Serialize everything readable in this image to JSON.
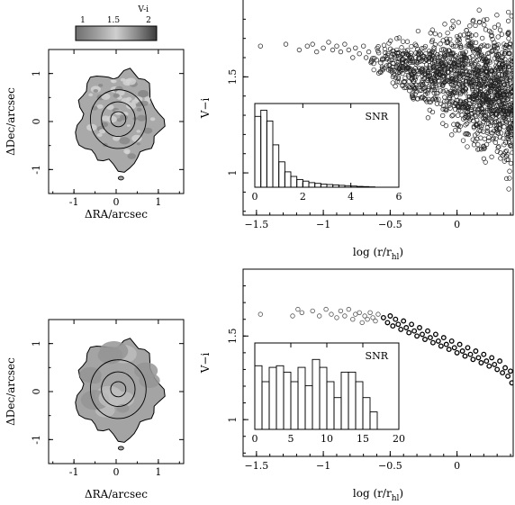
{
  "colorbar": {
    "label": "V-i",
    "tick_labels": [
      "1",
      "1.5",
      "2"
    ],
    "gradient": [
      "#6f6f6f",
      "#9c9c9c",
      "#cfcfcf",
      "#8a8a8a",
      "#3c3c3c"
    ]
  },
  "chart_data": [
    {
      "id": "map-top",
      "type": "heatmap",
      "xlabel": "ΔRA/arcsec",
      "ylabel": "ΔDec/arcsec",
      "xlim": [
        -1.6,
        1.6
      ],
      "ylim": [
        -1.5,
        1.5
      ],
      "xticks": [
        -1,
        0,
        1
      ],
      "yticks": [
        -1,
        0,
        1
      ],
      "fill_color": "#a9a9a9",
      "contour_radii_arcsec": [
        0.18,
        0.38,
        0.6
      ]
    },
    {
      "id": "map-bottom",
      "type": "heatmap",
      "xlabel": "ΔRA/arcsec",
      "ylabel": "ΔDec/arcsec",
      "xlim": [
        -1.6,
        1.6
      ],
      "ylim": [
        -1.5,
        1.5
      ],
      "xticks": [
        -1,
        0,
        1
      ],
      "yticks": [
        -1,
        0,
        1
      ],
      "fill_color": "#a4a4a4",
      "contour_radii_arcsec": [
        0.18,
        0.38,
        0.6
      ]
    },
    {
      "id": "scatter-top",
      "type": "scatter",
      "xlabel": "log (r/r",
      "xlabel_sub": "hl",
      "xlabel_close": ")",
      "ylabel": "V−i",
      "xlim": [
        -1.6,
        0.42
      ],
      "ylim": [
        0.78,
        1.9
      ],
      "xticks": [
        -1.5,
        -1,
        -0.5,
        0
      ],
      "yticks": [
        1,
        1.5
      ],
      "points_sparse": [
        [
          -1.47,
          1.66
        ],
        [
          -1.28,
          1.67
        ],
        [
          -1.18,
          1.64
        ],
        [
          -1.12,
          1.66
        ],
        [
          -1.08,
          1.67
        ],
        [
          -1.05,
          1.63
        ],
        [
          -1.0,
          1.65
        ],
        [
          -0.96,
          1.68
        ],
        [
          -0.93,
          1.64
        ],
        [
          -0.9,
          1.66
        ],
        [
          -0.87,
          1.63
        ],
        [
          -0.84,
          1.67
        ],
        [
          -0.81,
          1.64
        ],
        [
          -0.78,
          1.6
        ],
        [
          -0.76,
          1.65
        ],
        [
          -0.73,
          1.62
        ],
        [
          -0.7,
          1.66
        ],
        [
          -0.68,
          1.6
        ],
        [
          -0.66,
          1.63
        ],
        [
          -0.64,
          1.58
        ]
      ],
      "dense_cloud": {
        "x_range": [
          -0.65,
          0.42
        ],
        "y_center_at_start": 1.6,
        "y_center_at_end": 1.4,
        "spread_at_start": 0.08,
        "spread_at_end": 0.55,
        "count": 1400
      },
      "inset": {
        "type": "bar",
        "label": "SNR",
        "xlim": [
          0,
          6
        ],
        "xticks": [
          0,
          2,
          4,
          6
        ],
        "bin_width": 0.25,
        "values": [
          0.92,
          1.0,
          0.86,
          0.55,
          0.33,
          0.2,
          0.14,
          0.1,
          0.08,
          0.06,
          0.05,
          0.04,
          0.035,
          0.03,
          0.025,
          0.02,
          0.015,
          0.01,
          0.008,
          0.005
        ]
      }
    },
    {
      "id": "scatter-bottom",
      "type": "scatter",
      "xlabel": "log (r/r",
      "xlabel_sub": "hl",
      "xlabel_close": ")",
      "ylabel": "V−i",
      "xlim": [
        -1.6,
        0.42
      ],
      "ylim": [
        0.78,
        1.9
      ],
      "xticks": [
        -1.5,
        -1,
        -0.5,
        0
      ],
      "yticks": [
        1,
        1.5
      ],
      "points_light": [
        [
          -1.47,
          1.63
        ],
        [
          -1.23,
          1.62
        ],
        [
          -1.19,
          1.66
        ],
        [
          -1.16,
          1.64
        ],
        [
          -1.08,
          1.65
        ],
        [
          -1.03,
          1.62
        ],
        [
          -0.98,
          1.66
        ],
        [
          -0.94,
          1.63
        ],
        [
          -0.9,
          1.61
        ],
        [
          -0.87,
          1.65
        ],
        [
          -0.84,
          1.62
        ],
        [
          -0.81,
          1.66
        ],
        [
          -0.78,
          1.6
        ],
        [
          -0.76,
          1.63
        ],
        [
          -0.73,
          1.64
        ],
        [
          -0.71,
          1.58
        ],
        [
          -0.69,
          1.62
        ],
        [
          -0.67,
          1.6
        ],
        [
          -0.65,
          1.64
        ],
        [
          -0.63,
          1.61
        ],
        [
          -0.61,
          1.59
        ],
        [
          -0.59,
          1.63
        ]
      ],
      "points_dark": [
        [
          -0.55,
          1.61
        ],
        [
          -0.52,
          1.58
        ],
        [
          -0.5,
          1.62
        ],
        [
          -0.48,
          1.56
        ],
        [
          -0.46,
          1.6
        ],
        [
          -0.44,
          1.57
        ],
        [
          -0.42,
          1.54
        ],
        [
          -0.4,
          1.59
        ],
        [
          -0.38,
          1.55
        ],
        [
          -0.36,
          1.52
        ],
        [
          -0.34,
          1.57
        ],
        [
          -0.32,
          1.53
        ],
        [
          -0.3,
          1.5
        ],
        [
          -0.28,
          1.55
        ],
        [
          -0.26,
          1.51
        ],
        [
          -0.24,
          1.48
        ],
        [
          -0.22,
          1.53
        ],
        [
          -0.2,
          1.49
        ],
        [
          -0.18,
          1.46
        ],
        [
          -0.16,
          1.51
        ],
        [
          -0.14,
          1.47
        ],
        [
          -0.12,
          1.44
        ],
        [
          -0.1,
          1.49
        ],
        [
          -0.08,
          1.45
        ],
        [
          -0.06,
          1.42
        ],
        [
          -0.04,
          1.47
        ],
        [
          -0.02,
          1.43
        ],
        [
          0.0,
          1.4
        ],
        [
          0.02,
          1.45
        ],
        [
          0.04,
          1.41
        ],
        [
          0.06,
          1.38
        ],
        [
          0.08,
          1.43
        ],
        [
          0.1,
          1.39
        ],
        [
          0.12,
          1.36
        ],
        [
          0.14,
          1.41
        ],
        [
          0.16,
          1.37
        ],
        [
          0.18,
          1.34
        ],
        [
          0.2,
          1.39
        ],
        [
          0.22,
          1.35
        ],
        [
          0.24,
          1.32
        ],
        [
          0.26,
          1.37
        ],
        [
          0.28,
          1.33
        ],
        [
          0.3,
          1.3
        ],
        [
          0.32,
          1.35
        ],
        [
          0.34,
          1.28
        ],
        [
          0.36,
          1.31
        ],
        [
          0.38,
          1.26
        ],
        [
          0.4,
          1.29
        ],
        [
          0.41,
          1.22
        ]
      ],
      "inset": {
        "type": "bar",
        "label": "SNR",
        "xlim": [
          0,
          20
        ],
        "xticks": [
          0,
          5,
          10,
          15,
          20
        ],
        "bin_width": 1,
        "values": [
          0.8,
          0.6,
          0.78,
          0.8,
          0.72,
          0.6,
          0.78,
          0.55,
          0.88,
          0.78,
          0.6,
          0.4,
          0.72,
          0.72,
          0.6,
          0.4,
          0.22,
          0,
          0,
          0
        ]
      }
    }
  ]
}
